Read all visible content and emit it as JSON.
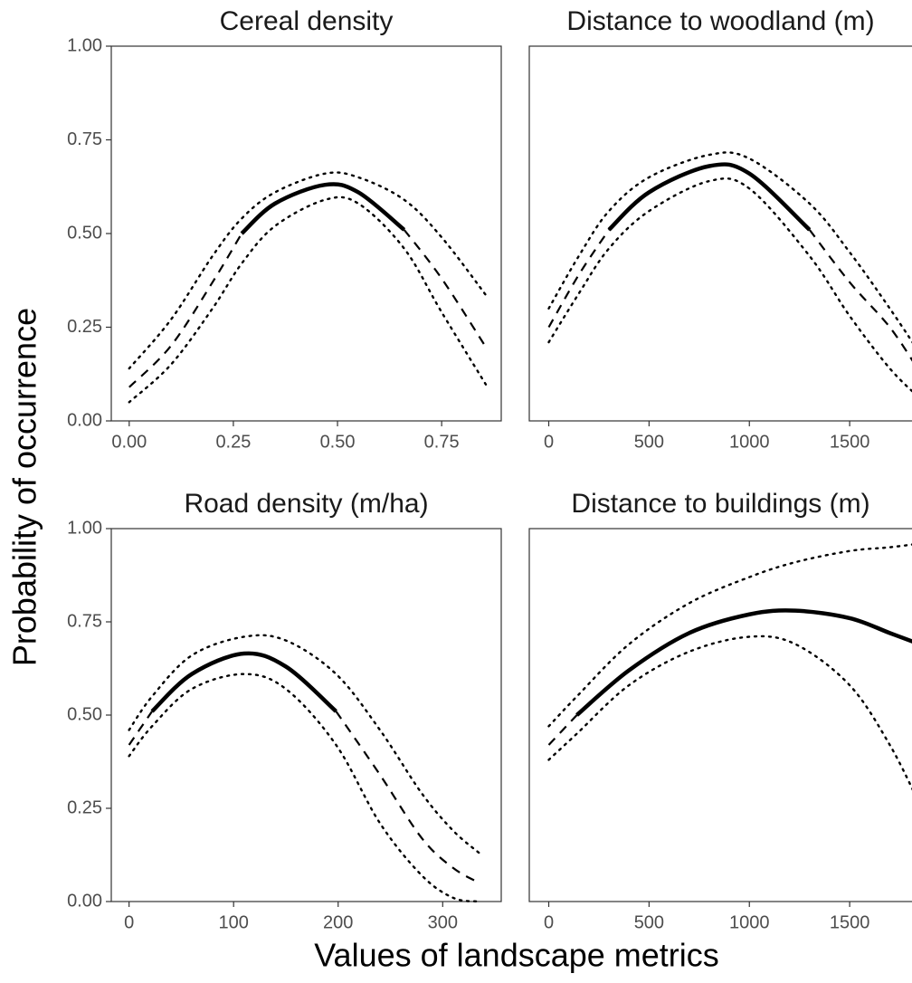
{
  "xlabel": "Values of landscape metrics",
  "ylabel": "Probability of occurrence",
  "chart_data": [
    {
      "type": "line",
      "title": "Cereal density",
      "x": [
        0,
        0.1,
        0.2,
        0.27,
        0.35,
        0.47,
        0.55,
        0.66,
        0.75,
        0.86
      ],
      "xlim": [
        -0.043,
        0.893
      ],
      "xticks": [
        {
          "value": 0,
          "label": "0.00"
        },
        {
          "value": 0.25,
          "label": "0.25"
        },
        {
          "value": 0.5,
          "label": "0.50"
        },
        {
          "value": 0.75,
          "label": "0.75"
        }
      ],
      "ylim": [
        0,
        1
      ],
      "yticks": [
        {
          "value": 0,
          "label": "0.00"
        },
        {
          "value": 0.25,
          "label": "0.25"
        },
        {
          "value": 0.5,
          "label": "0.50"
        },
        {
          "value": 0.75,
          "label": "0.75"
        },
        {
          "value": 1,
          "label": "1.00"
        }
      ],
      "series": [
        {
          "color": "#000000",
          "dash": "dotted",
          "values": [
            0.14,
            0.27,
            0.44,
            0.54,
            0.61,
            0.66,
            0.65,
            0.59,
            0.49,
            0.33
          ]
        },
        {
          "color": "#000000",
          "dash": "dotted",
          "values": [
            0.05,
            0.15,
            0.3,
            0.42,
            0.52,
            0.59,
            0.58,
            0.46,
            0.29,
            0.09
          ]
        },
        {
          "color": "#000000",
          "dash": "dashed",
          "values": [
            0.09,
            0.2,
            0.37,
            0.5,
            null,
            null,
            null,
            0.51,
            0.38,
            0.19
          ]
        },
        {
          "color": "#000000",
          "dash": "solid",
          "values": [
            null,
            null,
            null,
            0.5,
            0.58,
            0.63,
            0.61,
            0.51,
            null,
            null
          ]
        }
      ]
    },
    {
      "type": "line",
      "title": "Distance to woodland (m)",
      "x": [
        0,
        150,
        300,
        500,
        800,
        1000,
        1300,
        1500,
        1700,
        1850
      ],
      "xlim": [
        -97,
        1955
      ],
      "xticks": [
        0,
        500,
        1000,
        1500
      ],
      "ylim": [
        0,
        1
      ],
      "series": [
        {
          "color": "#000000",
          "dash": "dotted",
          "values": [
            0.3,
            0.44,
            0.56,
            0.65,
            0.71,
            0.7,
            0.58,
            0.45,
            0.3,
            0.18
          ]
        },
        {
          "color": "#000000",
          "dash": "dotted",
          "values": [
            0.21,
            0.34,
            0.46,
            0.56,
            0.64,
            0.62,
            0.44,
            0.28,
            0.14,
            0.06
          ]
        },
        {
          "color": "#000000",
          "dash": "dashed",
          "values": [
            0.25,
            0.39,
            0.51,
            null,
            null,
            null,
            0.51,
            0.37,
            0.25,
            0.13
          ]
        },
        {
          "color": "#000000",
          "dash": "solid",
          "values": [
            null,
            null,
            0.51,
            0.61,
            0.68,
            0.66,
            0.51,
            null,
            null,
            null
          ]
        }
      ]
    },
    {
      "type": "line",
      "title": "Road density (m/ha)",
      "x": [
        0,
        22,
        60,
        110,
        150,
        198,
        240,
        280,
        310,
        335
      ],
      "xlim": [
        -17,
        356
      ],
      "xticks": [
        0,
        100,
        200,
        300
      ],
      "ylim": [
        0,
        1
      ],
      "yticks": [
        {
          "value": 0,
          "label": "0.00"
        },
        {
          "value": 0.25,
          "label": "0.25"
        },
        {
          "value": 0.5,
          "label": "0.50"
        },
        {
          "value": 0.75,
          "label": "0.75"
        },
        {
          "value": 1,
          "label": "1.00"
        }
      ],
      "series": [
        {
          "color": "#000000",
          "dash": "dotted",
          "values": [
            0.46,
            0.55,
            0.66,
            0.71,
            0.7,
            0.61,
            0.46,
            0.29,
            0.19,
            0.13
          ]
        },
        {
          "color": "#000000",
          "dash": "dotted",
          "values": [
            0.39,
            0.47,
            0.57,
            0.61,
            0.57,
            0.42,
            0.21,
            0.07,
            0.01,
            0.0
          ]
        },
        {
          "color": "#000000",
          "dash": "dashed",
          "values": [
            0.42,
            0.51,
            null,
            null,
            null,
            0.51,
            0.34,
            0.17,
            0.09,
            0.05
          ]
        },
        {
          "color": "#000000",
          "dash": "solid",
          "values": [
            null,
            0.51,
            0.61,
            0.665,
            0.63,
            0.51,
            null,
            null,
            null,
            null
          ]
        }
      ]
    },
    {
      "type": "line",
      "title": "Distance to buildings (m)",
      "x": [
        0,
        140,
        400,
        700,
        1000,
        1230,
        1500,
        1700,
        1850
      ],
      "xlim": [
        -97,
        1955
      ],
      "xticks": [
        0,
        500,
        1000,
        1500
      ],
      "ylim": [
        0,
        1
      ],
      "series": [
        {
          "color": "#000000",
          "dash": "dotted",
          "values": [
            0.47,
            0.55,
            0.69,
            0.8,
            0.87,
            0.91,
            0.94,
            0.95,
            0.96
          ]
        },
        {
          "color": "#000000",
          "dash": "dotted",
          "values": [
            0.38,
            0.45,
            0.58,
            0.67,
            0.71,
            0.69,
            0.58,
            0.42,
            0.26
          ]
        },
        {
          "color": "#000000",
          "dash": "dashed",
          "values": [
            0.42,
            0.5,
            null,
            null,
            null,
            null,
            null,
            null,
            null
          ]
        },
        {
          "color": "#000000",
          "dash": "solid",
          "values": [
            null,
            0.5,
            0.62,
            0.72,
            0.77,
            0.78,
            0.76,
            0.72,
            0.69
          ]
        }
      ]
    }
  ]
}
